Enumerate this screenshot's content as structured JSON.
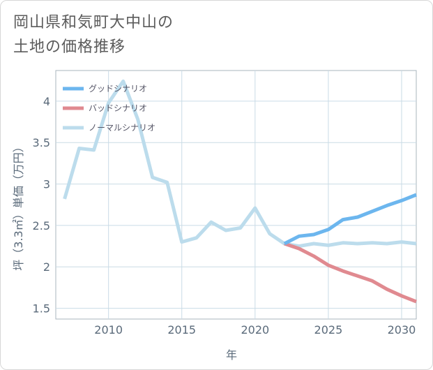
{
  "title_lines": [
    "岡山県和気町大中山の",
    "土地の価格推移"
  ],
  "chart_data": {
    "type": "line",
    "xlabel": "年",
    "ylabel": "坪（3.3㎡）単価（万円）",
    "xlim": [
      2006.4,
      2031
    ],
    "ylim": [
      1.37,
      4.37
    ],
    "x_ticks": [
      2010,
      2015,
      2020,
      2025,
      2030
    ],
    "y_ticks": [
      1.5,
      2,
      2.5,
      3,
      3.5,
      4
    ],
    "grid": true,
    "legend_position": "top-left",
    "series": [
      {
        "name": "グッドシナリオ",
        "color": "#6cb6ee",
        "x": [
          2022,
          2023,
          2024,
          2025,
          2026,
          2027,
          2028,
          2029,
          2030,
          2031
        ],
        "y": [
          2.28,
          2.37,
          2.39,
          2.45,
          2.57,
          2.6,
          2.67,
          2.74,
          2.8,
          2.87
        ]
      },
      {
        "name": "バッドシナリオ",
        "color": "#e08a90",
        "x": [
          2022,
          2023,
          2024,
          2025,
          2026,
          2027,
          2028,
          2029,
          2030,
          2031
        ],
        "y": [
          2.28,
          2.22,
          2.13,
          2.02,
          1.95,
          1.89,
          1.83,
          1.73,
          1.65,
          1.58
        ]
      },
      {
        "name": "ノーマルシナリオ",
        "color": "#bcdcec",
        "x": [
          2007,
          2008,
          2009,
          2010,
          2011,
          2012,
          2013,
          2014,
          2015,
          2016,
          2017,
          2018,
          2019,
          2020,
          2021,
          2022,
          2023,
          2024,
          2025,
          2026,
          2027,
          2028,
          2029,
          2030,
          2031
        ],
        "y": [
          2.82,
          3.43,
          3.41,
          3.98,
          4.24,
          3.78,
          3.08,
          3.02,
          2.3,
          2.35,
          2.54,
          2.44,
          2.47,
          2.71,
          2.4,
          2.28,
          2.25,
          2.28,
          2.26,
          2.29,
          2.28,
          2.29,
          2.28,
          2.3,
          2.28
        ]
      }
    ]
  }
}
